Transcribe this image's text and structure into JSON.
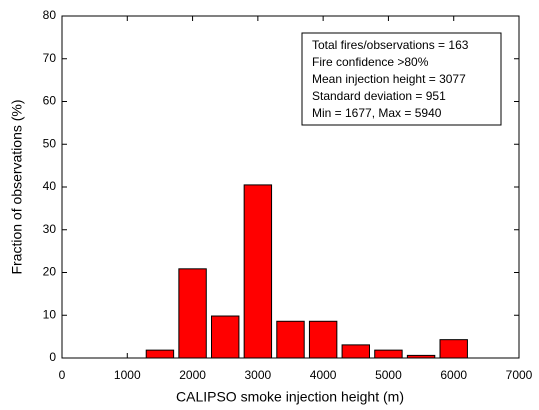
{
  "chart_data": {
    "type": "histogram",
    "x_label": "CALIPSO smoke injection height (m)",
    "y_label": "Fraction of observations (%)",
    "bins": [
      1250,
      1750,
      2250,
      2750,
      3250,
      3750,
      4250,
      4750,
      5250,
      5750,
      6250
    ],
    "values": [
      1.84,
      20.86,
      9.82,
      40.49,
      8.59,
      8.59,
      3.07,
      1.84,
      0.61,
      4.29
    ],
    "color": "#ff0000",
    "xlim": [
      0,
      7000
    ],
    "xticks": [
      0,
      1000,
      2000,
      3000,
      4000,
      5000,
      6000,
      7000
    ],
    "ylim": [
      0,
      80
    ],
    "yticks": [
      0,
      10,
      20,
      30,
      40,
      50,
      60,
      70,
      80
    ],
    "annotation": [
      "Total fires/observations = 163",
      "Fire confidence >80%",
      "Mean injection height = 3077",
      "Standard deviation = 951",
      "Min = 1677, Max = 5940"
    ]
  }
}
